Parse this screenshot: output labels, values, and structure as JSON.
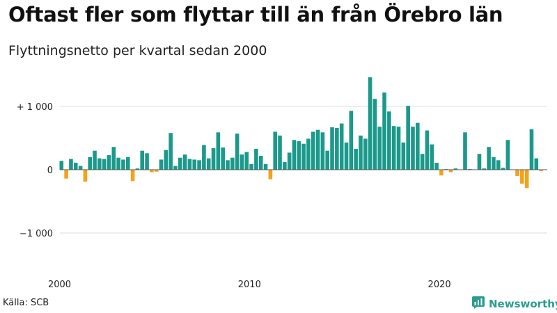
{
  "title": "Oftast fler som flyttar till än från Örebro län",
  "subtitle": "Flyttningsnetto per kvartal sedan 2000",
  "source": "Källa: SCB",
  "brand": {
    "label": "Newsworthy",
    "icon": "newsworthy-logo-icon"
  },
  "colors": {
    "positive": "#1b998b",
    "negative": "#f5a21b",
    "grid": "#dddddd",
    "zero": "#555555"
  },
  "chart_data": {
    "type": "bar",
    "title": "Oftast fler som flyttar till än från Örebro län",
    "subtitle": "Flyttningsnetto per kvartal sedan 2000",
    "xlabel": "",
    "ylabel": "",
    "x_start": 2000,
    "x_ticks": [
      2000,
      2010,
      2020
    ],
    "y_ticks": [
      1000,
      0,
      -1000
    ],
    "y_tick_labels": [
      "+ 1 000",
      "0",
      "−1 000"
    ],
    "ylim": [
      -1500,
      1500
    ],
    "grid": true,
    "values": [
      140,
      -140,
      170,
      110,
      60,
      -190,
      200,
      300,
      180,
      170,
      230,
      360,
      190,
      160,
      200,
      -180,
      20,
      300,
      260,
      -40,
      -30,
      160,
      310,
      580,
      60,
      190,
      240,
      170,
      160,
      150,
      390,
      180,
      340,
      590,
      350,
      150,
      190,
      570,
      240,
      280,
      90,
      330,
      220,
      90,
      -150,
      600,
      540,
      120,
      270,
      470,
      450,
      410,
      490,
      600,
      630,
      590,
      300,
      670,
      660,
      730,
      430,
      930,
      330,
      540,
      490,
      1460,
      1120,
      680,
      1220,
      920,
      690,
      680,
      430,
      1010,
      680,
      740,
      250,
      620,
      400,
      110,
      -90,
      10,
      -40,
      20,
      0,
      590,
      10,
      0,
      250,
      20,
      360,
      200,
      150,
      30,
      470,
      0,
      -100,
      -220,
      -290,
      640,
      180,
      -20
    ]
  }
}
